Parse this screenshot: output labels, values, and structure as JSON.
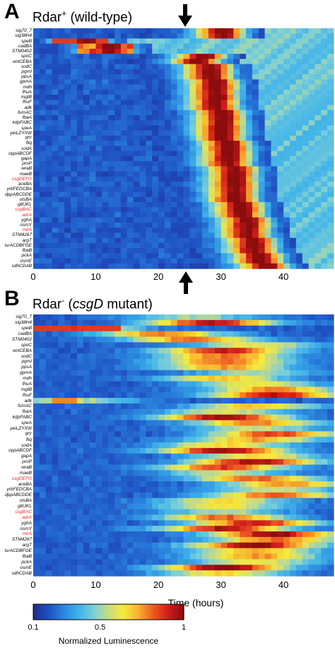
{
  "colors": {
    "highlight_gene": "#e8262b",
    "arrow": "#000000"
  },
  "colormap": [
    "#1e2b8f",
    "#1f52c4",
    "#2b86de",
    "#3fb2ea",
    "#7ccfd7",
    "#c8dc80",
    "#f6ea3c",
    "#f8b12e",
    "#ee5a22",
    "#d01e1a",
    "#8c0d0d"
  ],
  "panel_a": {
    "letter": "A",
    "title_main": "Rdar",
    "title_sup": "+",
    "title_rest": " (wild-type)"
  },
  "panel_b": {
    "letter": "B",
    "title_main": "Rdar",
    "title_sup": "-",
    "title_rest": " (",
    "title_italic": "csgD",
    "title_end": " mutant)"
  },
  "x_ticks": [
    "0",
    "10",
    "20",
    "30",
    "40"
  ],
  "x_axis_label": "Time (hours)",
  "colorbar": {
    "label": "Normalized Luminescence",
    "ticks": [
      "0.1",
      "0.5",
      "1"
    ]
  },
  "genes": [
    {
      "name": "sig70_7",
      "red": false
    },
    {
      "name": "sig38H4",
      "red": false
    },
    {
      "name": "speB",
      "red": false
    },
    {
      "name": "cadBA",
      "red": false
    },
    {
      "name": "STM0402",
      "red": false
    },
    {
      "name": "spoC",
      "red": false
    },
    {
      "name": "entCEBA",
      "red": false
    },
    {
      "name": "sodC",
      "red": false
    },
    {
      "name": "pgmI",
      "red": false
    },
    {
      "name": "ppsA",
      "red": false
    },
    {
      "name": "gpmA",
      "red": false
    },
    {
      "name": "mdh",
      "red": false
    },
    {
      "name": "fhuA",
      "red": false
    },
    {
      "name": "mgtB",
      "red": false
    },
    {
      "name": "fhuF",
      "red": false
    },
    {
      "name": "adk",
      "red": false
    },
    {
      "name": "fumAC",
      "red": false
    },
    {
      "name": "fbaA",
      "red": false
    },
    {
      "name": "kdpFABC",
      "red": false
    },
    {
      "name": "speA",
      "red": false
    },
    {
      "name": "yeiLZYXW",
      "red": false
    },
    {
      "name": "tlfY",
      "red": false
    },
    {
      "name": "fliq",
      "red": false
    },
    {
      "name": "sodA",
      "red": false
    },
    {
      "name": "oppABCDF",
      "red": false
    },
    {
      "name": "gapA",
      "red": false
    },
    {
      "name": "proP",
      "red": false
    },
    {
      "name": "wraB",
      "red": false
    },
    {
      "name": "maeB",
      "red": false
    },
    {
      "name": "csgDEFG",
      "red": true
    },
    {
      "name": "aceBA",
      "red": false
    },
    {
      "name": "yrbFEDCBA",
      "red": false
    },
    {
      "name": "dppABCDDE",
      "red": false
    },
    {
      "name": "otsBA",
      "red": false
    },
    {
      "name": "gltIJKL",
      "red": false
    },
    {
      "name": "csgBAC",
      "red": true
    },
    {
      "name": "adrA",
      "red": true
    },
    {
      "name": "yghA",
      "red": false
    },
    {
      "name": "osmY",
      "red": false
    },
    {
      "name": "mlrA",
      "red": true
    },
    {
      "name": "STM4267",
      "red": false
    },
    {
      "name": "argT",
      "red": false
    },
    {
      "name": "lsrACDBFGE",
      "red": false
    },
    {
      "name": "fbaB",
      "red": false
    },
    {
      "name": "pckA",
      "red": false
    },
    {
      "name": "osmE",
      "red": false
    },
    {
      "name": "sdhCDAB",
      "red": false
    }
  ],
  "chart_data": [
    {
      "type": "heatmap",
      "title": "Rdar+ (wild-type)",
      "xlabel": "",
      "ylabel": "",
      "x_range": [
        0,
        48
      ],
      "x_ticks": [
        0,
        10,
        20,
        30,
        40
      ],
      "annotation": "arrows at ~25 h",
      "arrow_time": 25,
      "color_scale": {
        "min": 0.1,
        "mid": 0.5,
        "max": 1
      },
      "description_of_values": "Each row: normalized luminescence over time; peak (red) time per gene listed in peak_hours",
      "rows": [
        "sig70_7",
        "sig38H4",
        "speB",
        "cadBA",
        "STM0402",
        "spoC",
        "entCEBA",
        "sodC",
        "pgmI",
        "ppsA",
        "gpmA",
        "mdh",
        "fhuA",
        "mgtB",
        "fhuF",
        "adk",
        "fumAC",
        "fbaA",
        "kdpFABC",
        "speA",
        "yeiLZYXW",
        "tlfY",
        "fliq",
        "sodA",
        "oppABCDF",
        "gapA",
        "proP",
        "wraB",
        "maeB",
        "csgDEFG",
        "aceBA",
        "yrbFEDCBA",
        "dppABCDDE",
        "otsBA",
        "gltIJKL",
        "csgBAC",
        "adrA",
        "yghA",
        "osmY",
        "mlrA",
        "STM4267",
        "argT",
        "lsrACDBFGE",
        "fbaB",
        "pckA",
        "osmE",
        "sdhCDAB"
      ],
      "peak_hours": [
        30,
        30,
        8,
        12,
        12,
        27,
        26,
        28,
        28,
        28,
        29,
        29,
        29,
        29,
        29,
        29,
        30,
        30,
        30,
        30,
        30,
        30,
        31,
        31,
        31,
        31,
        31,
        32,
        32,
        32,
        32,
        32,
        32,
        32,
        33,
        33,
        33,
        34,
        34,
        34,
        34,
        35,
        35,
        35,
        36,
        36,
        37
      ]
    },
    {
      "type": "heatmap",
      "title": "Rdar- (csgD mutant)",
      "xlabel": "Time (hours)",
      "ylabel": "",
      "x_range": [
        0,
        48
      ],
      "x_ticks": [
        0,
        10,
        20,
        30,
        40
      ],
      "color_scale": {
        "min": 0.1,
        "mid": 0.5,
        "max": 1
      },
      "rows": [
        "sig70_7",
        "sig38H4",
        "speB",
        "cadBA",
        "STM0402",
        "spoC",
        "entCEBA",
        "sodC",
        "pgmI",
        "ppsA",
        "gpmA",
        "mdh",
        "fhuA",
        "mgtB",
        "fhuF",
        "adk",
        "fumAC",
        "fbaA",
        "kdpFABC",
        "speA",
        "yeiLZYXW",
        "tlfY",
        "fliq",
        "sodA",
        "oppABCDF",
        "gapA",
        "proP",
        "wraB",
        "maeB",
        "csgDEFG",
        "aceBA",
        "yrbFEDCBA",
        "dppABCDDE",
        "otsBA",
        "gltIJKL",
        "csgBAC",
        "adrA",
        "yghA",
        "osmY",
        "mlrA",
        "STM4267",
        "argT",
        "lsrACDBFGE",
        "fbaB",
        "pckA",
        "osmE",
        "sdhCDAB"
      ],
      "peak_hours": [
        25,
        28,
        5,
        20,
        25,
        35,
        30,
        30,
        30,
        30,
        35,
        30,
        35,
        38,
        38,
        5,
        35,
        30,
        30,
        35,
        35,
        38,
        35,
        30,
        30,
        35,
        35,
        30,
        30,
        35,
        40,
        38,
        38,
        30,
        30,
        30,
        30,
        35,
        30,
        38,
        38,
        35,
        35,
        35,
        35,
        30,
        30
      ]
    }
  ]
}
